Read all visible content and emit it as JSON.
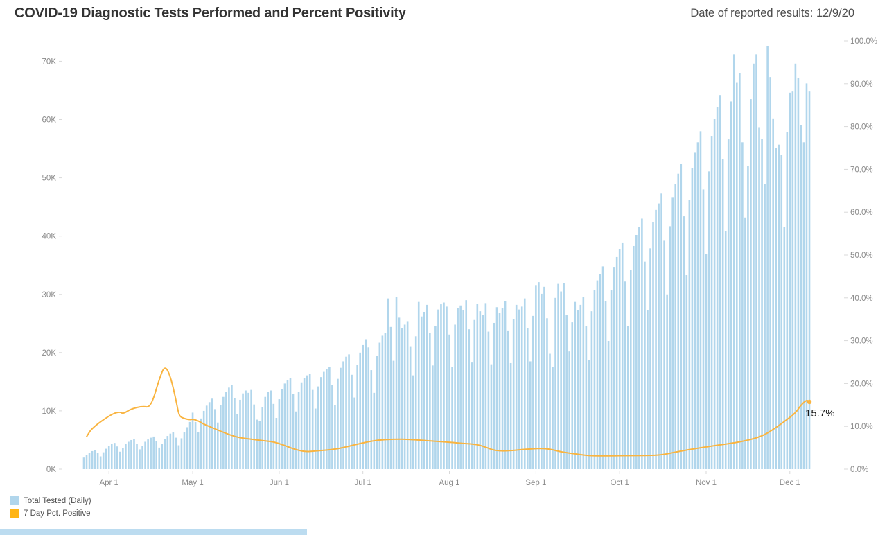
{
  "page": {
    "title": "COVID-19 Diagnostic Tests Performed and Percent Positivity",
    "date_note": "Date of reported results: 12/9/20"
  },
  "legend": {
    "items": [
      {
        "label": "Total Tested (Daily)",
        "color": "#B1D6EC"
      },
      {
        "label": "7 Day Pct. Positive",
        "color": "#FFB515"
      }
    ]
  },
  "chart_data": {
    "type": "bar+line",
    "title": "COVID-19 Diagnostic Tests Performed and Percent Positivity",
    "subtitle": "Date of reported results: 12/9/20",
    "x_start_date": "3/23/20",
    "x_end_date": "12/8/20",
    "x_ticks": [
      {
        "label": "Apr 1",
        "day": 9
      },
      {
        "label": "May 1",
        "day": 39
      },
      {
        "label": "Jun 1",
        "day": 70
      },
      {
        "label": "Jul 1",
        "day": 100
      },
      {
        "label": "Aug 1",
        "day": 131
      },
      {
        "label": "Sep 1",
        "day": 162
      },
      {
        "label": "Oct 1",
        "day": 192
      },
      {
        "label": "Nov 1",
        "day": 223
      },
      {
        "label": "Dec 1",
        "day": 253
      }
    ],
    "left_axis": {
      "series": "Total Tested (Daily)",
      "ticks": [
        {
          "label": "0K",
          "value": 0
        },
        {
          "label": "10K",
          "value": 10000
        },
        {
          "label": "20K",
          "value": 20000
        },
        {
          "label": "30K",
          "value": 30000
        },
        {
          "label": "40K",
          "value": 40000
        },
        {
          "label": "50K",
          "value": 50000
        },
        {
          "label": "60K",
          "value": 60000
        },
        {
          "label": "70K",
          "value": 70000
        }
      ],
      "min": 0,
      "max_label": 70000,
      "plot_max": 73500
    },
    "right_axis": {
      "series": "7 Day Pct. Positive",
      "ticks": [
        {
          "label": "0.0%",
          "value": 0
        },
        {
          "label": "10.0%",
          "value": 10
        },
        {
          "label": "20.0%",
          "value": 20
        },
        {
          "label": "30.0%",
          "value": 30
        },
        {
          "label": "40.0%",
          "value": 40
        },
        {
          "label": "50.0%",
          "value": 50
        },
        {
          "label": "60.0%",
          "value": 60
        },
        {
          "label": "70.0%",
          "value": 70
        },
        {
          "label": "80.0%",
          "value": 80
        },
        {
          "label": "90.0%",
          "value": 90
        },
        {
          "label": "100.0%",
          "value": 100
        }
      ],
      "min": 0,
      "max": 100
    },
    "bars": {
      "name": "Total Tested (Daily)",
      "color": "#B1D6EC",
      "unit": "tests, thousands",
      "values_k": [
        2.0,
        2.4,
        2.8,
        3.1,
        3.3,
        2.8,
        2.2,
        2.9,
        3.5,
        4.0,
        4.3,
        4.5,
        3.9,
        3.0,
        3.6,
        4.3,
        4.7,
        5.0,
        5.2,
        4.4,
        3.4,
        4.0,
        4.7,
        5.1,
        5.4,
        5.6,
        4.8,
        3.7,
        4.4,
        5.2,
        5.7,
        6.1,
        6.3,
        5.4,
        4.1,
        5.3,
        6.3,
        7.2,
        8.1,
        9.7,
        8.1,
        6.3,
        8.7,
        10.0,
        10.9,
        11.5,
        12.1,
        10.3,
        8.0,
        11.0,
        12.4,
        13.3,
        14.0,
        14.5,
        12.2,
        9.4,
        11.9,
        13.0,
        13.5,
        13.1,
        13.6,
        11.1,
        8.5,
        8.3,
        10.7,
        12.4,
        13.2,
        13.5,
        11.2,
        8.8,
        12.0,
        13.7,
        14.7,
        15.3,
        15.6,
        12.9,
        9.9,
        13.3,
        14.9,
        15.6,
        16.1,
        16.4,
        13.6,
        10.4,
        14.2,
        15.8,
        16.7,
        17.2,
        17.5,
        14.4,
        11.0,
        15.5,
        17.4,
        18.5,
        19.3,
        19.7,
        16.2,
        12.3,
        17.9,
        20.0,
        21.3,
        22.3,
        20.9,
        17.0,
        13.1,
        19.5,
        21.7,
        22.9,
        23.4,
        29.3,
        24.4,
        18.6,
        29.5,
        26.0,
        24.2,
        24.8,
        25.4,
        21.1,
        16.1,
        22.8,
        28.7,
        26.2,
        27.0,
        28.2,
        23.4,
        17.8,
        24.6,
        27.4,
        28.3,
        28.6,
        27.9,
        23.1,
        17.6,
        24.8,
        27.6,
        28.1,
        27.3,
        29.0,
        24.0,
        18.3,
        25.6,
        28.4,
        27.1,
        26.5,
        28.5,
        23.6,
        18.0,
        25.1,
        27.8,
        26.8,
        27.6,
        28.8,
        23.8,
        18.2,
        25.8,
        28.2,
        27.4,
        27.9,
        29.3,
        24.2,
        18.5,
        26.3,
        31.6,
        32.1,
        30.1,
        31.3,
        25.9,
        19.8,
        17.5,
        29.4,
        31.8,
        30.5,
        31.9,
        26.4,
        20.2,
        25.2,
        28.7,
        27.3,
        28.2,
        29.6,
        24.5,
        18.7,
        27.1,
        30.8,
        32.4,
        33.5,
        34.8,
        28.8,
        22.0,
        30.8,
        34.6,
        36.4,
        37.7,
        38.9,
        32.2,
        24.6,
        34.2,
        38.3,
        40.2,
        41.6,
        43.0,
        35.6,
        27.3,
        37.9,
        42.4,
        44.5,
        45.6,
        47.3,
        39.2,
        30.0,
        41.7,
        46.7,
        49.0,
        50.7,
        52.4,
        43.4,
        33.3,
        46.2,
        51.7,
        54.3,
        56.1,
        58.0,
        48.0,
        36.9,
        51.1,
        57.2,
        60.1,
        62.2,
        64.2,
        53.2,
        40.9,
        56.6,
        63.1,
        71.2,
        66.3,
        68.0,
        56.1,
        43.2,
        52.0,
        63.5,
        69.6,
        71.2,
        58.7,
        56.7,
        48.9,
        72.6,
        67.3,
        60.2,
        55.1,
        55.7,
        53.9,
        41.6,
        57.9,
        64.6,
        64.8,
        69.6,
        67.2,
        59.1,
        56.1,
        66.2,
        64.8
      ]
    },
    "line": {
      "name": "7 Day Pct. Positive",
      "color": "#F9B440",
      "unit": "percent",
      "points_day_pct": [
        [
          1,
          7.6
        ],
        [
          3,
          9.7
        ],
        [
          10,
          12.9
        ],
        [
          13,
          13.4
        ],
        [
          14,
          12.9
        ],
        [
          17,
          14.1
        ],
        [
          21,
          14.7
        ],
        [
          24,
          14.4
        ],
        [
          27,
          21.0
        ],
        [
          29,
          24.3
        ],
        [
          31,
          21.8
        ],
        [
          33,
          16.2
        ],
        [
          34,
          12.8
        ],
        [
          35,
          12.0
        ],
        [
          38,
          11.5
        ],
        [
          39,
          11.7
        ],
        [
          41,
          11.3
        ],
        [
          43,
          10.5
        ],
        [
          46,
          9.7
        ],
        [
          50,
          8.6
        ],
        [
          55,
          7.4
        ],
        [
          60,
          7.0
        ],
        [
          65,
          6.6
        ],
        [
          69,
          6.3
        ],
        [
          78,
          4.0
        ],
        [
          84,
          4.3
        ],
        [
          91,
          4.7
        ],
        [
          99,
          6.0
        ],
        [
          105,
          6.8
        ],
        [
          111,
          7.0
        ],
        [
          116,
          7.0
        ],
        [
          124,
          6.6
        ],
        [
          131,
          6.3
        ],
        [
          136,
          6.0
        ],
        [
          141,
          5.8
        ],
        [
          145,
          4.9
        ],
        [
          147,
          4.4
        ],
        [
          151,
          4.2
        ],
        [
          159,
          4.7
        ],
        [
          166,
          4.9
        ],
        [
          171,
          4.0
        ],
        [
          176,
          3.6
        ],
        [
          181,
          3.1
        ],
        [
          188,
          3.1
        ],
        [
          196,
          3.2
        ],
        [
          206,
          3.2
        ],
        [
          212,
          4.0
        ],
        [
          218,
          4.7
        ],
        [
          226,
          5.5
        ],
        [
          235,
          6.3
        ],
        [
          243,
          7.6
        ],
        [
          248,
          9.7
        ],
        [
          252,
          11.6
        ],
        [
          255,
          13.1
        ],
        [
          257,
          15.0
        ],
        [
          259,
          16.2
        ],
        [
          260,
          15.7
        ]
      ],
      "last_value_label": "15.7%"
    },
    "annotation": "15.7%",
    "legend_entries": [
      "Total Tested (Daily)",
      "7 Day Pct. Positive"
    ],
    "grid": "off",
    "legend_position": "bottom-left"
  },
  "colors": {
    "bar_blue": "#B1D6EC",
    "line_amber": "#F9B440",
    "legend_amber": "#FFB515",
    "axis_text": "#8A8A8A",
    "title_text": "#333333",
    "annotation_text": "#1A1A1A",
    "tick_mark": "#D9D9D9"
  }
}
